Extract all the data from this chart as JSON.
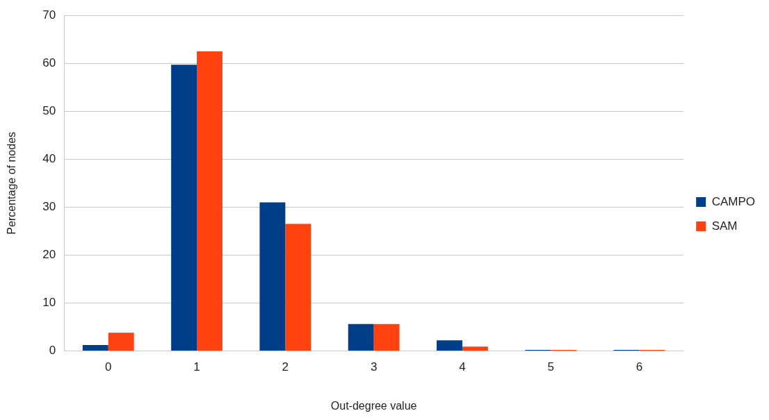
{
  "chart_data": {
    "type": "bar",
    "xlabel": "Out-degree value",
    "ylabel": "Percentage of nodes",
    "categories": [
      "0",
      "1",
      "2",
      "3",
      "4",
      "5",
      "6"
    ],
    "series": [
      {
        "name": "CAMPO",
        "color": "#003f87",
        "values": [
          1.2,
          59.7,
          31,
          5.6,
          2.2,
          0.2,
          0.2
        ]
      },
      {
        "name": "SAM",
        "color": "#ff4210",
        "values": [
          3.8,
          62.5,
          26.5,
          5.6,
          0.9,
          0.2,
          0.2
        ]
      }
    ],
    "ylim": [
      0,
      70
    ],
    "yticks": [
      0,
      10,
      20,
      30,
      40,
      50,
      60,
      70
    ],
    "grid": "y",
    "legend": "right"
  }
}
